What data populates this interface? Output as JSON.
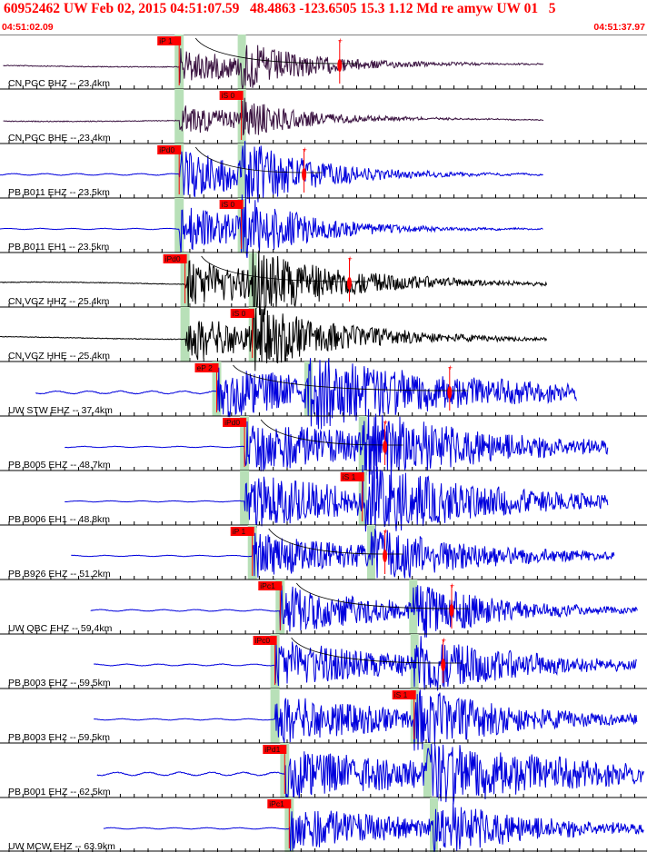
{
  "header": {
    "title": "60952462 UW Feb 02, 2015 04:51:07.59   48.4863 -123.6505 15.3 1.12 Md re amyw UW 01   5",
    "time_start": "04:51:02.09",
    "time_end": "04:51:37.97"
  },
  "colors": {
    "header": "#ff0000",
    "pick": "#ff0000",
    "window": "#b8e0b8",
    "ticks": "#000000"
  },
  "traces": [
    {
      "label": "CN PGC BHZ -- 23.4km",
      "color": "#3a1240",
      "pick": "iP 1",
      "pick_t": 0.277,
      "win_t": 0.277,
      "s_t": 0.373,
      "wave_start": 0.005,
      "wave_end": 0.84,
      "onset": 0.277,
      "amp": 0.4,
      "noise": 0.12,
      "freq": 0.03,
      "burst": 0.16,
      "coda_t": 0.525,
      "coda": true
    },
    {
      "label": "CN PGC BHE -- 23.4km",
      "color": "#3a1240",
      "pick": "iS 0",
      "pick_t": 0.373,
      "win_t": 0.277,
      "s_t": 0.373,
      "wave_start": 0.005,
      "wave_end": 0.84,
      "onset": 0.277,
      "amp": 0.35,
      "noise": 0.12,
      "freq": 0.03,
      "burst": 0.14,
      "coda_t": null,
      "coda": false
    },
    {
      "label": "PB B011 EHZ -- 23.5km",
      "color": "#0000dd",
      "pick": "iPd0",
      "pick_t": 0.277,
      "win_t": 0.277,
      "s_t": 0.373,
      "wave_start": 0.0,
      "wave_end": 0.84,
      "onset": 0.277,
      "amp": 0.6,
      "noise": 0.06,
      "freq": 0.6,
      "burst": 0.15,
      "coda_t": 0.47,
      "coda": true
    },
    {
      "label": "PB B011 EH1 -- 23.5km",
      "color": "#0000dd",
      "pick": "iS 0",
      "pick_t": 0.373,
      "win_t": 0.277,
      "s_t": 0.373,
      "wave_start": 0.0,
      "wave_end": 0.84,
      "onset": 0.277,
      "amp": 0.55,
      "noise": 0.04,
      "freq": 0.6,
      "burst": 0.15,
      "coda_t": null,
      "coda": false
    },
    {
      "label": "CN VGZ HHZ -- 25.4km",
      "color": "#000000",
      "pick": "iPd0",
      "pick_t": 0.286,
      "win_t": 0.286,
      "s_t": 0.39,
      "wave_start": 0.0,
      "wave_end": 0.845,
      "onset": 0.286,
      "amp": 0.55,
      "noise": 0.1,
      "freq": 0.05,
      "burst": 0.2,
      "coda_t": 0.54,
      "coda": true
    },
    {
      "label": "CN VGZ HHE -- 25.4km",
      "color": "#000000",
      "pick": "iS 0",
      "pick_t": 0.39,
      "win_t": 0.286,
      "s_t": 0.39,
      "wave_start": 0.0,
      "wave_end": 0.845,
      "onset": 0.286,
      "amp": 0.5,
      "noise": 0.1,
      "freq": 0.05,
      "burst": 0.2,
      "coda_t": null,
      "coda": false
    },
    {
      "label": "UW STW EHZ -- 37.4km",
      "color": "#0000dd",
      "pick": "eP 2",
      "pick_t": 0.335,
      "win_t": 0.335,
      "s_t": 0.476,
      "wave_start": 0.055,
      "wave_end": 0.892,
      "onset": 0.335,
      "amp": 0.55,
      "noise": 0.1,
      "freq": 0.6,
      "burst": 0.35,
      "coda_t": 0.695,
      "coda": true
    },
    {
      "label": "PB B005 EHZ -- 48.7km",
      "color": "#0000dd",
      "pick": "iPd0",
      "pick_t": 0.378,
      "win_t": 0.378,
      "s_t": 0.56,
      "wave_start": 0.1,
      "wave_end": 0.94,
      "onset": 0.378,
      "amp": 0.6,
      "noise": 0.04,
      "freq": 0.6,
      "burst": 0.3,
      "coda_t": 0.595,
      "coda": true
    },
    {
      "label": "PB B006 EH1 -- 48.8km",
      "color": "#0000dd",
      "pick": "iS 1",
      "pick_t": 0.56,
      "win_t": 0.378,
      "s_t": 0.56,
      "wave_start": 0.1,
      "wave_end": 0.94,
      "onset": 0.378,
      "amp": 0.6,
      "noise": 0.04,
      "freq": 0.6,
      "burst": 0.3,
      "coda_t": null,
      "coda": false
    },
    {
      "label": "PB B926 EHZ -- 51.2km",
      "color": "#0000dd",
      "pick": "iP 1",
      "pick_t": 0.39,
      "win_t": 0.39,
      "s_t": 0.573,
      "wave_start": 0.11,
      "wave_end": 0.95,
      "onset": 0.39,
      "amp": 0.5,
      "noise": 0.04,
      "freq": 0.6,
      "burst": 0.25,
      "coda_t": 0.595,
      "coda": true
    },
    {
      "label": "UW QBC EHZ -- 59.4km",
      "color": "#0000dd",
      "pick": "iPc1",
      "pick_t": 0.433,
      "win_t": 0.433,
      "s_t": 0.638,
      "wave_start": 0.14,
      "wave_end": 0.985,
      "onset": 0.433,
      "amp": 0.55,
      "noise": 0.06,
      "freq": 0.6,
      "burst": 0.2,
      "coda_t": 0.698,
      "coda": true
    },
    {
      "label": "PB B003 EHZ -- 59.5km",
      "color": "#0000dd",
      "pick": "iPc0",
      "pick_t": 0.425,
      "win_t": 0.425,
      "s_t": 0.64,
      "wave_start": 0.145,
      "wave_end": 0.985,
      "onset": 0.425,
      "amp": 0.55,
      "noise": 0.06,
      "freq": 0.6,
      "burst": 0.25,
      "coda_t": 0.685,
      "coda": true
    },
    {
      "label": "PB B003 EH2 -- 59.5km",
      "color": "#0000dd",
      "pick": "iS 1",
      "pick_t": 0.64,
      "win_t": 0.425,
      "s_t": 0.64,
      "wave_start": 0.145,
      "wave_end": 0.985,
      "onset": 0.425,
      "amp": 0.55,
      "noise": 0.05,
      "freq": 0.6,
      "burst": 0.25,
      "coda_t": null,
      "coda": false
    },
    {
      "label": "PB B001 EHZ -- 62.5km",
      "color": "#0000dd",
      "pick": "iPd1",
      "pick_t": 0.44,
      "win_t": 0.44,
      "s_t": 0.66,
      "wave_start": 0.15,
      "wave_end": 0.995,
      "onset": 0.44,
      "amp": 0.55,
      "noise": 0.12,
      "freq": 0.6,
      "burst": 0.35,
      "coda_t": null,
      "coda": false
    },
    {
      "label": "UW MCW EHZ -- 63.9km",
      "color": "#0000dd",
      "pick": "iPc1",
      "pick_t": 0.447,
      "win_t": 0.447,
      "s_t": 0.67,
      "wave_start": 0.16,
      "wave_end": 0.995,
      "onset": 0.447,
      "amp": 0.5,
      "noise": 0.05,
      "freq": 0.6,
      "burst": 0.25,
      "coda_t": null,
      "coda": false
    }
  ]
}
